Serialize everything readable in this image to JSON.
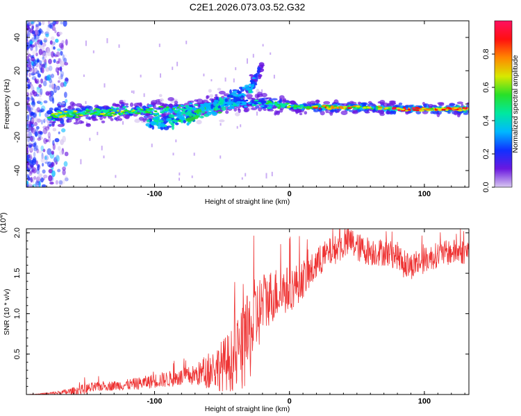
{
  "chart_data": [
    {
      "type": "heatmap",
      "title": "C2E1.2026.073.03.52.G32",
      "xlabel": "Height of straight line (km)",
      "ylabel": "Frequency (Hz)",
      "xlim": [
        -195,
        133
      ],
      "ylim": [
        -50,
        50
      ],
      "x_ticks": [
        "-100",
        "0",
        "100"
      ],
      "y_ticks": [
        "40",
        "20",
        "0",
        "-20",
        "-40"
      ],
      "colorbar": {
        "label": "Normalized spectral amplitude",
        "range": [
          0,
          1
        ],
        "ticks": [
          "0.0",
          "0.2",
          "0.4",
          "0.6",
          "0.8"
        ],
        "colors": [
          "#d8c8f0",
          "#6a18e0",
          "#1030ff",
          "#00b8ff",
          "#00e8a0",
          "#28e028",
          "#d8e800",
          "#ff8800",
          "#ff1010",
          "#ff1060"
        ]
      },
      "ridge": [
        {
          "x": -178,
          "y": -7,
          "a": 0.55
        },
        {
          "x": -165,
          "y": -6,
          "a": 0.6
        },
        {
          "x": -150,
          "y": -5,
          "a": 0.5
        },
        {
          "x": -130,
          "y": -5,
          "a": 0.55
        },
        {
          "x": -110,
          "y": -4,
          "a": 0.5
        },
        {
          "x": -90,
          "y": -4,
          "a": 0.45
        },
        {
          "x": -70,
          "y": -2,
          "a": 0.35
        },
        {
          "x": -50,
          "y": 0,
          "a": 0.35
        },
        {
          "x": -30,
          "y": 1,
          "a": 0.3
        },
        {
          "x": -15,
          "y": 0,
          "a": 0.45
        },
        {
          "x": -5,
          "y": -1,
          "a": 0.5
        },
        {
          "x": 5,
          "y": -2,
          "a": 0.5
        },
        {
          "x": 20,
          "y": -2,
          "a": 0.7
        },
        {
          "x": 40,
          "y": -2,
          "a": 0.7
        },
        {
          "x": 60,
          "y": -2,
          "a": 0.65
        },
        {
          "x": 80,
          "y": -3,
          "a": 0.85
        },
        {
          "x": 100,
          "y": -3,
          "a": 0.75
        },
        {
          "x": 115,
          "y": -3,
          "a": 0.8
        },
        {
          "x": 133,
          "y": -3,
          "a": 0.85
        }
      ],
      "branch": [
        {
          "x": -105,
          "y": -12,
          "a": 0.35
        },
        {
          "x": -80,
          "y": -9,
          "a": 0.4
        },
        {
          "x": -60,
          "y": -4,
          "a": 0.4
        },
        {
          "x": -45,
          "y": 3,
          "a": 0.35
        },
        {
          "x": -30,
          "y": 8,
          "a": 0.3
        },
        {
          "x": -20,
          "y": 24,
          "a": 0.12
        }
      ]
    },
    {
      "type": "line",
      "xlabel": "Height of straight line (km)",
      "ylabel": "SNR (10 * v/v)",
      "y_multiplier": "(x10",
      "y_multiplier_exp": "4",
      "xlim": [
        -195,
        133
      ],
      "ylim": [
        0,
        20500
      ],
      "x_ticks": [
        "-100",
        "0",
        "100"
      ],
      "y_ticks": [
        "0.5",
        "1.0",
        "1.5",
        "2.0"
      ],
      "series": [
        {
          "name": "SNR",
          "color": "#ee3333",
          "x": [
            -195,
            -180,
            -165,
            -150,
            -140,
            -130,
            -120,
            -110,
            -100,
            -90,
            -80,
            -70,
            -60,
            -50,
            -40,
            -35,
            -30,
            -25,
            -20,
            -15,
            -10,
            -5,
            0,
            5,
            10,
            15,
            20,
            25,
            30,
            40,
            45,
            50,
            60,
            70,
            80,
            85,
            90,
            100,
            110,
            120,
            133
          ],
          "y": [
            0,
            100,
            300,
            700,
            1000,
            1100,
            1200,
            1400,
            1700,
            1900,
            2100,
            2400,
            2900,
            3600,
            4500,
            5500,
            7000,
            9500,
            11000,
            12000,
            12500,
            12800,
            13000,
            13600,
            14300,
            15000,
            16000,
            17000,
            17600,
            18400,
            19000,
            18200,
            17700,
            17600,
            17200,
            16000,
            15900,
            16600,
            17300,
            17600,
            17700
          ],
          "noise": [
            0,
            100,
            400,
            700,
            600,
            600,
            700,
            800,
            900,
            1000,
            1100,
            1300,
            2200,
            3200,
            4200,
            5200,
            5800,
            5200,
            4000,
            3500,
            3300,
            3100,
            2900,
            2600,
            2400,
            2200,
            2000,
            1900,
            1800,
            1800,
            1900,
            1800,
            1800,
            1700,
            1700,
            1700,
            1700,
            1600,
            1600,
            1600,
            1600
          ]
        }
      ]
    }
  ]
}
